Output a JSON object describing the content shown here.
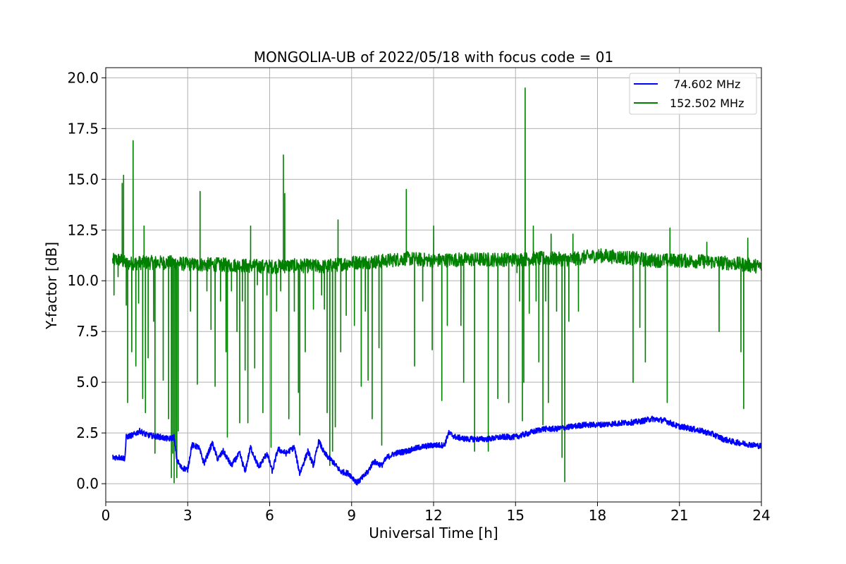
{
  "chart_data": {
    "type": "line",
    "title": "MONGOLIA-UB of 2022/05/18 with focus code = 01",
    "xlabel": "Universal Time [h]",
    "ylabel": "Y-factor [dB]",
    "xlim": [
      0,
      24
    ],
    "ylim": [
      -0.9,
      20.5
    ],
    "xticks": [
      0,
      3,
      6,
      9,
      12,
      15,
      18,
      21,
      24
    ],
    "xtick_labels": [
      "0",
      "3",
      "6",
      "9",
      "12",
      "15",
      "18",
      "21",
      "24"
    ],
    "yticks": [
      0,
      2.5,
      5,
      7.5,
      10,
      12.5,
      15,
      17.5,
      20
    ],
    "ytick_labels": [
      "0.0",
      "2.5",
      "5.0",
      "7.5",
      "10.0",
      "12.5",
      "15.0",
      "17.5",
      "20.0"
    ],
    "grid": true,
    "legend_position": "top-right",
    "series": [
      {
        "name": " 74.602 MHz",
        "color": "#0000ff",
        "points": [
          [
            0.25,
            1.3
          ],
          [
            0.5,
            1.3
          ],
          [
            0.7,
            1.25
          ],
          [
            0.75,
            2.3
          ],
          [
            1.0,
            2.4
          ],
          [
            1.25,
            2.6
          ],
          [
            1.5,
            2.4
          ],
          [
            2.0,
            2.3
          ],
          [
            2.3,
            2.2
          ],
          [
            2.5,
            2.3
          ],
          [
            2.6,
            1.2
          ],
          [
            2.75,
            0.8
          ],
          [
            3.0,
            0.7
          ],
          [
            3.15,
            1.9
          ],
          [
            3.4,
            1.8
          ],
          [
            3.6,
            1.0
          ],
          [
            3.9,
            2.0
          ],
          [
            4.1,
            1.2
          ],
          [
            4.3,
            1.6
          ],
          [
            4.6,
            0.9
          ],
          [
            4.9,
            1.5
          ],
          [
            5.1,
            0.6
          ],
          [
            5.3,
            1.8
          ],
          [
            5.6,
            0.8
          ],
          [
            5.9,
            1.5
          ],
          [
            6.1,
            0.6
          ],
          [
            6.3,
            1.7
          ],
          [
            6.6,
            1.5
          ],
          [
            6.9,
            1.8
          ],
          [
            7.1,
            0.5
          ],
          [
            7.4,
            1.6
          ],
          [
            7.6,
            0.9
          ],
          [
            7.8,
            2.1
          ],
          [
            8.0,
            1.5
          ],
          [
            8.3,
            1.1
          ],
          [
            8.6,
            0.6
          ],
          [
            8.9,
            0.5
          ],
          [
            9.2,
            0.05
          ],
          [
            9.4,
            0.3
          ],
          [
            9.6,
            0.6
          ],
          [
            9.8,
            1.1
          ],
          [
            10.1,
            0.9
          ],
          [
            10.3,
            1.3
          ],
          [
            10.6,
            1.5
          ],
          [
            11.0,
            1.6
          ],
          [
            11.5,
            1.8
          ],
          [
            12.0,
            1.9
          ],
          [
            12.4,
            1.9
          ],
          [
            12.55,
            2.5
          ],
          [
            12.8,
            2.3
          ],
          [
            13.2,
            2.2
          ],
          [
            14.0,
            2.2
          ],
          [
            14.5,
            2.3
          ],
          [
            15.0,
            2.3
          ],
          [
            15.5,
            2.5
          ],
          [
            16.0,
            2.7
          ],
          [
            16.5,
            2.7
          ],
          [
            17.0,
            2.8
          ],
          [
            17.5,
            2.9
          ],
          [
            18.0,
            2.9
          ],
          [
            18.5,
            2.95
          ],
          [
            19.0,
            3.0
          ],
          [
            19.5,
            3.05
          ],
          [
            20.0,
            3.2
          ],
          [
            20.5,
            3.1
          ],
          [
            20.9,
            2.85
          ],
          [
            21.3,
            2.75
          ],
          [
            21.8,
            2.6
          ],
          [
            22.2,
            2.45
          ],
          [
            22.6,
            2.2
          ],
          [
            23.0,
            2.05
          ],
          [
            23.5,
            1.95
          ],
          [
            24.0,
            1.85
          ]
        ]
      },
      {
        "name": "152.502 MHz",
        "color": "#008000",
        "baseline": [
          [
            0.25,
            11.0
          ],
          [
            0.5,
            11.05
          ],
          [
            0.75,
            10.85
          ],
          [
            1.5,
            10.9
          ],
          [
            2.5,
            10.9
          ],
          [
            3.0,
            10.8
          ],
          [
            4.0,
            10.8
          ],
          [
            5.0,
            10.75
          ],
          [
            6.0,
            10.7
          ],
          [
            7.0,
            10.75
          ],
          [
            8.0,
            10.7
          ],
          [
            9.0,
            10.9
          ],
          [
            10.0,
            10.95
          ],
          [
            11.0,
            11.1
          ],
          [
            12.0,
            11.0
          ],
          [
            13.0,
            11.05
          ],
          [
            14.0,
            11.05
          ],
          [
            15.0,
            11.05
          ],
          [
            16.0,
            11.1
          ],
          [
            17.0,
            11.05
          ],
          [
            18.0,
            11.25
          ],
          [
            19.0,
            11.15
          ],
          [
            20.0,
            11.0
          ],
          [
            21.0,
            11.0
          ],
          [
            22.0,
            10.95
          ],
          [
            23.0,
            10.85
          ],
          [
            24.0,
            10.7
          ]
        ],
        "spikes": [
          [
            0.3,
            9.3
          ],
          [
            0.45,
            10.2
          ],
          [
            0.6,
            14.8
          ],
          [
            0.65,
            15.2
          ],
          [
            0.75,
            8.8
          ],
          [
            0.8,
            4.0
          ],
          [
            0.95,
            6.5
          ],
          [
            1.0,
            16.9
          ],
          [
            1.1,
            5.8
          ],
          [
            1.2,
            8.9
          ],
          [
            1.35,
            4.2
          ],
          [
            1.4,
            12.7
          ],
          [
            1.45,
            3.5
          ],
          [
            1.55,
            6.2
          ],
          [
            1.75,
            8.0
          ],
          [
            1.8,
            1.5
          ],
          [
            2.1,
            5.1
          ],
          [
            2.3,
            3.2
          ],
          [
            2.4,
            0.3
          ],
          [
            2.45,
            1.5
          ],
          [
            2.5,
            0.05
          ],
          [
            2.55,
            1.8
          ],
          [
            2.6,
            0.3
          ],
          [
            2.65,
            2.6
          ],
          [
            3.1,
            8.5
          ],
          [
            3.35,
            4.9
          ],
          [
            3.45,
            14.4
          ],
          [
            3.7,
            9.5
          ],
          [
            3.85,
            7.6
          ],
          [
            4.0,
            4.8
          ],
          [
            4.2,
            9.0
          ],
          [
            4.4,
            6.5
          ],
          [
            4.45,
            2.3
          ],
          [
            4.6,
            9.5
          ],
          [
            4.8,
            7.5
          ],
          [
            4.9,
            3.0
          ],
          [
            5.0,
            9.0
          ],
          [
            5.1,
            5.6
          ],
          [
            5.2,
            3.0
          ],
          [
            5.3,
            12.7
          ],
          [
            5.45,
            5.7
          ],
          [
            5.55,
            9.8
          ],
          [
            5.75,
            3.5
          ],
          [
            5.9,
            9.3
          ],
          [
            6.05,
            1.8
          ],
          [
            6.25,
            8.5
          ],
          [
            6.4,
            9.5
          ],
          [
            6.5,
            16.2
          ],
          [
            6.55,
            14.3
          ],
          [
            6.65,
            11.0
          ],
          [
            6.7,
            3.2
          ],
          [
            6.9,
            8.5
          ],
          [
            7.05,
            4.5
          ],
          [
            7.1,
            2.4
          ],
          [
            7.3,
            6.5
          ],
          [
            7.6,
            8.6
          ],
          [
            7.9,
            9.3
          ],
          [
            8.0,
            8.6
          ],
          [
            8.1,
            3.5
          ],
          [
            8.2,
            0.9
          ],
          [
            8.3,
            1.6
          ],
          [
            8.4,
            2.8
          ],
          [
            8.5,
            13.0
          ],
          [
            8.6,
            6.5
          ],
          [
            8.8,
            8.3
          ],
          [
            9.1,
            7.8
          ],
          [
            9.35,
            4.8
          ],
          [
            9.5,
            8.5
          ],
          [
            9.6,
            5.1
          ],
          [
            9.75,
            3.2
          ],
          [
            10.0,
            6.7
          ],
          [
            10.1,
            1.9
          ],
          [
            11.0,
            14.5
          ],
          [
            11.3,
            5.8
          ],
          [
            11.6,
            9.0
          ],
          [
            11.95,
            6.6
          ],
          [
            12.0,
            12.7
          ],
          [
            12.3,
            4.1
          ],
          [
            12.5,
            7.8
          ],
          [
            13.0,
            7.8
          ],
          [
            13.1,
            5.0
          ],
          [
            13.5,
            1.6
          ],
          [
            14.0,
            1.6
          ],
          [
            14.35,
            4.2
          ],
          [
            14.75,
            4.0
          ],
          [
            15.05,
            10.4
          ],
          [
            15.15,
            9.0
          ],
          [
            15.25,
            3.1
          ],
          [
            15.3,
            5.0
          ],
          [
            15.35,
            19.5
          ],
          [
            15.5,
            8.4
          ],
          [
            15.65,
            12.7
          ],
          [
            15.75,
            9.0
          ],
          [
            15.85,
            6.0
          ],
          [
            16.0,
            2.9
          ],
          [
            16.1,
            9.0
          ],
          [
            16.2,
            4.0
          ],
          [
            16.3,
            12.3
          ],
          [
            16.5,
            8.5
          ],
          [
            16.7,
            1.3
          ],
          [
            16.8,
            0.1
          ],
          [
            16.95,
            8.0
          ],
          [
            17.1,
            12.3
          ],
          [
            17.3,
            8.5
          ],
          [
            19.3,
            5.0
          ],
          [
            19.55,
            7.7
          ],
          [
            19.75,
            6.0
          ],
          [
            20.55,
            4.0
          ],
          [
            20.65,
            12.6
          ],
          [
            21.65,
            10.9
          ],
          [
            22.0,
            11.9
          ],
          [
            22.45,
            7.5
          ],
          [
            22.6,
            10.6
          ],
          [
            23.25,
            6.5
          ],
          [
            23.35,
            3.7
          ],
          [
            23.5,
            12.1
          ],
          [
            24.0,
            10.0
          ]
        ]
      }
    ]
  }
}
